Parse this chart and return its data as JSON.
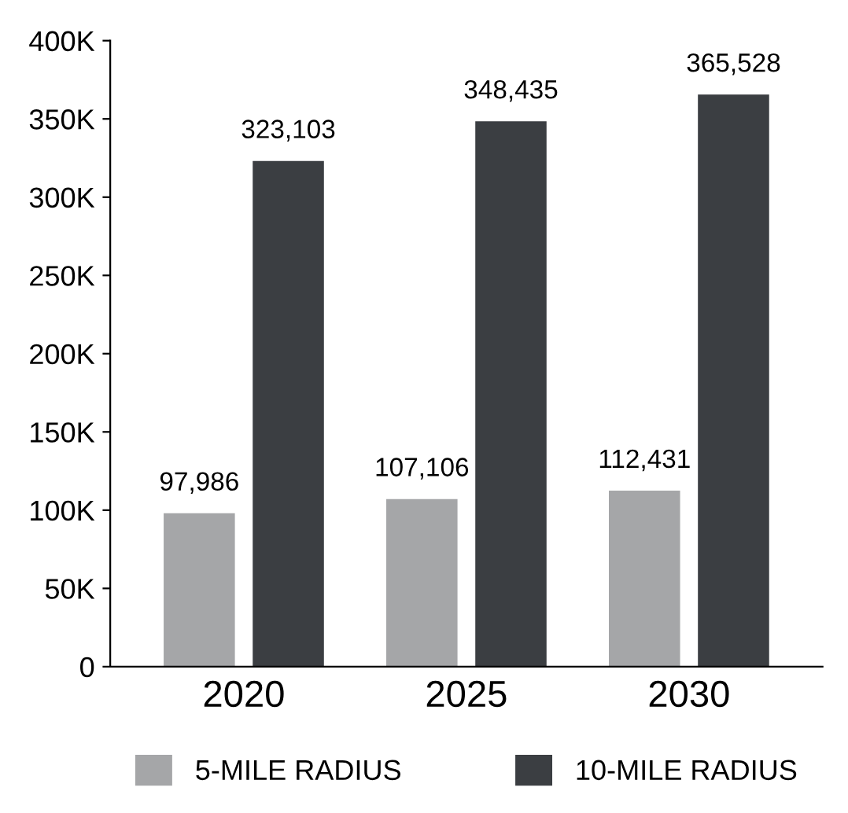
{
  "chart_data": {
    "type": "bar",
    "categories": [
      "2020",
      "2025",
      "2030"
    ],
    "series": [
      {
        "name": "5-MILE RADIUS",
        "color": "#a5a6a8",
        "values": [
          97986,
          107106,
          112431
        ],
        "value_labels": [
          "97,986",
          "107,106",
          "112,431"
        ]
      },
      {
        "name": "10-MILE RADIUS",
        "color": "#3b3e42",
        "values": [
          323103,
          348435,
          365528
        ],
        "value_labels": [
          "323,103",
          "348,435",
          "365,528"
        ]
      }
    ],
    "ylim": [
      0,
      400000
    ],
    "yticks": [
      0,
      {
        "value": 50000,
        "label": "50K"
      },
      {
        "value": 100000,
        "label": "100K"
      },
      {
        "value": 150000,
        "label": "150K"
      },
      {
        "value": 200000,
        "label": "200K"
      },
      {
        "value": 250000,
        "label": "250K"
      },
      {
        "value": 300000,
        "label": "300K"
      },
      {
        "value": 350000,
        "label": "350K"
      },
      {
        "value": 400000,
        "label": "400K"
      }
    ],
    "grid": false,
    "legend": "bottom"
  }
}
